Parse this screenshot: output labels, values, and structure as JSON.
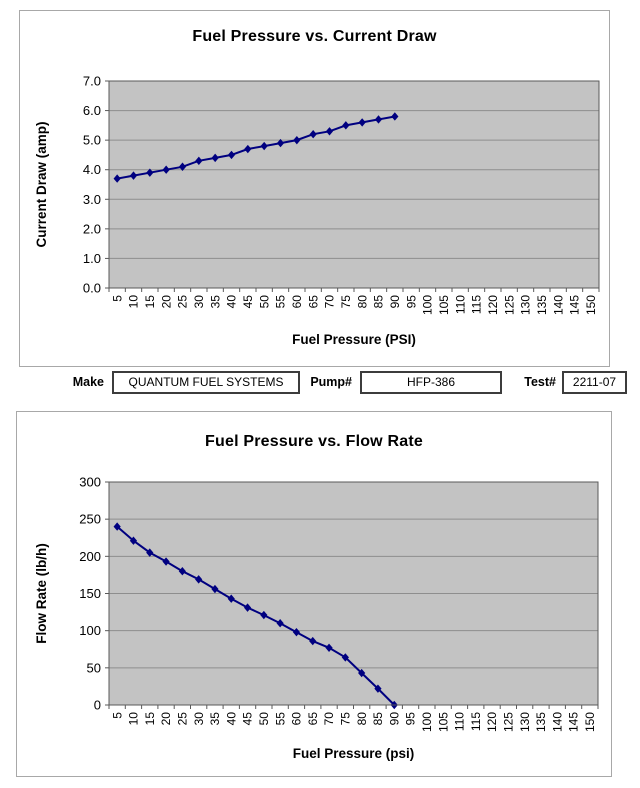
{
  "fields": {
    "make_label": "Make",
    "make_value": "QUANTUM FUEL SYSTEMS",
    "pump_label": "Pump#",
    "pump_value": "HFP-386",
    "test_label": "Test#",
    "test_value": "2211-07"
  },
  "chart_data": [
    {
      "type": "line",
      "title": "Fuel Pressure vs. Current Draw",
      "xlabel": "Fuel Pressure (PSI)",
      "ylabel": "Current Draw (amp)",
      "x": [
        5,
        10,
        15,
        20,
        25,
        30,
        35,
        40,
        45,
        50,
        55,
        60,
        65,
        70,
        75,
        80,
        85,
        90
      ],
      "values": [
        3.7,
        3.8,
        3.9,
        4.0,
        4.1,
        4.3,
        4.4,
        4.5,
        4.7,
        4.8,
        4.9,
        5.0,
        5.2,
        5.3,
        5.5,
        5.6,
        5.7,
        5.8
      ],
      "x_ticks": [
        5,
        10,
        15,
        20,
        25,
        30,
        35,
        40,
        45,
        50,
        55,
        60,
        65,
        70,
        75,
        80,
        85,
        90,
        95,
        100,
        105,
        110,
        115,
        120,
        125,
        130,
        135,
        140,
        145,
        150
      ],
      "ylim": [
        0,
        7
      ],
      "y_tick_step": 1,
      "y_decimals": 1,
      "legend": "none",
      "grid": "horizontal",
      "marker": "diamond",
      "series_color": "#000080",
      "plot_bg": "#c3c3c3",
      "grid_color": "#8e8e8e",
      "axis_color": "#595959"
    },
    {
      "type": "line",
      "title": "Fuel Pressure vs. Flow Rate",
      "xlabel": "Fuel Pressure (psi)",
      "ylabel": "Flow Rate (lb/h)",
      "x": [
        5,
        10,
        15,
        20,
        25,
        30,
        35,
        40,
        45,
        50,
        55,
        60,
        65,
        70,
        75,
        80,
        85,
        90
      ],
      "values": [
        240,
        221,
        205,
        193,
        180,
        169,
        156,
        143,
        131,
        121,
        110,
        98,
        86,
        77,
        64,
        43,
        22,
        0
      ],
      "x_ticks": [
        5,
        10,
        15,
        20,
        25,
        30,
        35,
        40,
        45,
        50,
        55,
        60,
        65,
        70,
        75,
        80,
        85,
        90,
        95,
        100,
        105,
        110,
        115,
        120,
        125,
        130,
        135,
        140,
        145,
        150
      ],
      "ylim": [
        0,
        300
      ],
      "y_tick_step": 50,
      "y_decimals": 0,
      "legend": "none",
      "grid": "horizontal",
      "marker": "diamond",
      "series_color": "#000080",
      "plot_bg": "#c3c3c3",
      "grid_color": "#8e8e8e",
      "axis_color": "#595959"
    }
  ]
}
